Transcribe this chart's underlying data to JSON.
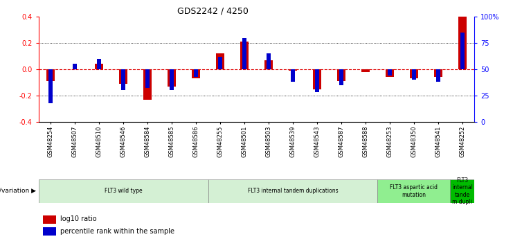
{
  "title": "GDS2242 / 4250",
  "samples": [
    "GSM48254",
    "GSM48507",
    "GSM48510",
    "GSM48546",
    "GSM48584",
    "GSM48585",
    "GSM48586",
    "GSM48255",
    "GSM48501",
    "GSM48503",
    "GSM48539",
    "GSM48543",
    "GSM48587",
    "GSM48588",
    "GSM48253",
    "GSM48350",
    "GSM48541",
    "GSM48252"
  ],
  "log10_ratio": [
    -0.09,
    0.0,
    0.04,
    -0.11,
    -0.23,
    -0.13,
    -0.07,
    0.12,
    0.21,
    0.07,
    -0.01,
    -0.15,
    -0.09,
    -0.02,
    -0.06,
    -0.07,
    -0.06,
    0.4
  ],
  "percentile_rank": [
    18,
    55,
    60,
    30,
    32,
    30,
    43,
    62,
    80,
    65,
    38,
    28,
    35,
    50,
    44,
    40,
    38,
    85
  ],
  "ylim_left": [
    -0.4,
    0.4
  ],
  "ylim_right": [
    0,
    100
  ],
  "yticks_left": [
    -0.4,
    -0.2,
    0.0,
    0.2,
    0.4
  ],
  "yticks_right": [
    0,
    25,
    50,
    75,
    100
  ],
  "ytick_labels_right": [
    "0",
    "25",
    "50",
    "75",
    "100%"
  ],
  "bar_color_red": "#cc0000",
  "bar_color_blue": "#0000cc",
  "groups": [
    {
      "label": "FLT3 wild type",
      "start": 0,
      "end": 7,
      "color": "#d4f0d4"
    },
    {
      "label": "FLT3 internal tandem duplications",
      "start": 7,
      "end": 14,
      "color": "#d4f0d4"
    },
    {
      "label": "FLT3 aspartic acid\nmutation",
      "start": 14,
      "end": 17,
      "color": "#90ee90"
    },
    {
      "label": "FLT3\ninternal\ntande\nm dupli",
      "start": 17,
      "end": 18,
      "color": "#00bb00"
    }
  ],
  "genotype_label": "genotype/variation",
  "legend_red": "log10 ratio",
  "legend_blue": "percentile rank within the sample",
  "hline_color": "#dd0000",
  "background_color": "#ffffff"
}
